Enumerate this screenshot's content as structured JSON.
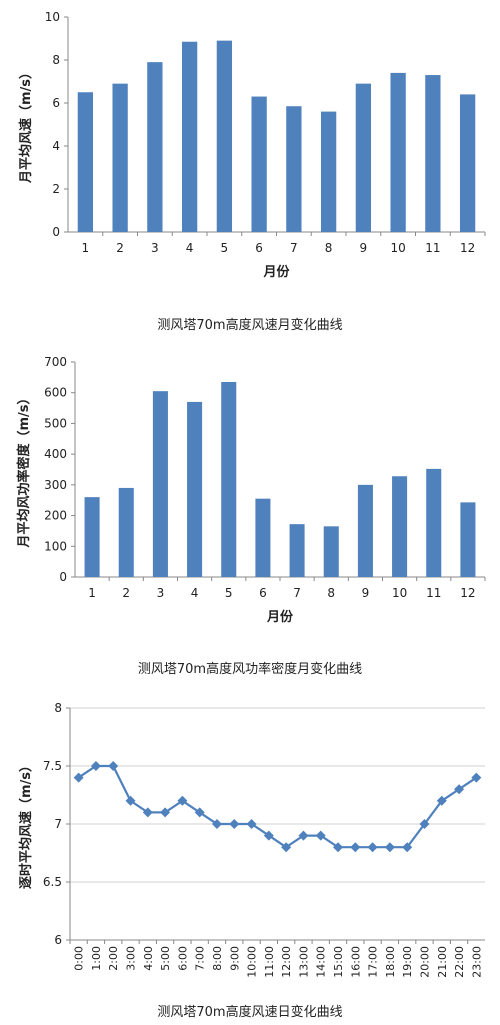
{
  "chart_data": [
    {
      "type": "bar",
      "title": "",
      "xlabel": "月份",
      "ylabel": "月平均风速（m/s）",
      "categories": [
        "1",
        "2",
        "3",
        "4",
        "5",
        "6",
        "7",
        "8",
        "9",
        "10",
        "11",
        "12"
      ],
      "values": [
        6.5,
        6.9,
        7.9,
        8.85,
        8.9,
        6.3,
        5.85,
        5.6,
        6.9,
        7.4,
        7.3,
        6.4
      ],
      "ylim": [
        0,
        10
      ],
      "yticks": [
        0,
        2,
        4,
        6,
        8,
        10
      ],
      "bar_color": "#4f81bd",
      "grid": false,
      "caption": "测风塔70m高度风速月变化曲线"
    },
    {
      "type": "bar",
      "title": "",
      "xlabel": "月份",
      "ylabel": "月平均风功率密度（m/s）",
      "categories": [
        "1",
        "2",
        "3",
        "4",
        "5",
        "6",
        "7",
        "8",
        "9",
        "10",
        "11",
        "12"
      ],
      "values": [
        260,
        290,
        605,
        570,
        635,
        255,
        172,
        165,
        300,
        328,
        352,
        243
      ],
      "ylim": [
        0,
        700
      ],
      "yticks": [
        0,
        100,
        200,
        300,
        400,
        500,
        600,
        700
      ],
      "bar_color": "#4f81bd",
      "grid": false,
      "caption": "测风塔70m高度风功率密度月变化曲线"
    },
    {
      "type": "line",
      "title": "",
      "xlabel": "",
      "ylabel": "逐时平均风速（m/s）",
      "categories": [
        "0:00",
        "1:00",
        "2:00",
        "3:00",
        "4:00",
        "5:00",
        "6:00",
        "7:00",
        "8:00",
        "9:00",
        "10:00",
        "11:00",
        "12:00",
        "13:00",
        "14:00",
        "15:00",
        "16:00",
        "17:00",
        "18:00",
        "19:00",
        "20:00",
        "21:00",
        "22:00",
        "23:00"
      ],
      "values": [
        7.4,
        7.5,
        7.5,
        7.2,
        7.1,
        7.1,
        7.2,
        7.1,
        7.0,
        7.0,
        7.0,
        6.9,
        6.8,
        6.9,
        6.9,
        6.8,
        6.8,
        6.8,
        6.8,
        6.8,
        7.0,
        7.2,
        7.3,
        7.4
      ],
      "ylim": [
        6,
        8
      ],
      "yticks": [
        "6",
        "6.5",
        "7",
        "7.5",
        "8"
      ],
      "line_color": "#4f81bd",
      "marker": "diamond",
      "grid": true,
      "caption": "测风塔70m高度风速日变化曲线"
    }
  ]
}
